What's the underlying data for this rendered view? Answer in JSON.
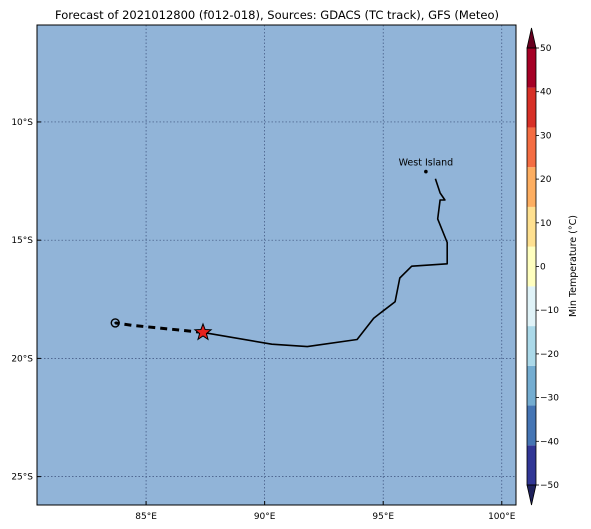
{
  "title": "Forecast of 2021012800 (f012-018), Sources: GDACS (TC track), GFS (Meteo)",
  "map": {
    "background_color": "#91b4d8",
    "grid": true,
    "lon_range": [
      80.4,
      100.6
    ],
    "lat_range": [
      -26.2,
      -5.9
    ],
    "lon_ticks": [
      {
        "value": 85,
        "label": "85°E"
      },
      {
        "value": 90,
        "label": "90°E"
      },
      {
        "value": 95,
        "label": "95°E"
      },
      {
        "value": 100,
        "label": "100°E"
      }
    ],
    "lat_ticks": [
      {
        "value": -10,
        "label": "10°S"
      },
      {
        "value": -15,
        "label": "15°S"
      },
      {
        "value": -20,
        "label": "20°S"
      },
      {
        "value": -25,
        "label": "25°S"
      }
    ],
    "places": [
      {
        "name": "West Island",
        "lon": 96.8,
        "lat": -12.1
      }
    ],
    "track_past": [
      [
        97.2,
        -12.4
      ],
      [
        97.4,
        -13.0
      ],
      [
        97.6,
        -13.3
      ],
      [
        97.4,
        -13.3
      ],
      [
        97.3,
        -14.1
      ],
      [
        97.7,
        -15.1
      ],
      [
        97.7,
        -16.0
      ],
      [
        96.2,
        -16.1
      ],
      [
        95.7,
        -16.6
      ],
      [
        95.5,
        -17.6
      ],
      [
        94.6,
        -18.3
      ],
      [
        93.9,
        -19.2
      ],
      [
        91.8,
        -19.5
      ],
      [
        90.3,
        -19.4
      ],
      [
        87.4,
        -18.9
      ]
    ],
    "track_forecast": [
      [
        87.4,
        -18.9
      ],
      [
        84.4,
        -18.6
      ],
      [
        83.7,
        -18.5
      ]
    ],
    "current_position": {
      "lon": 87.4,
      "lat": -18.9,
      "color": "#e8221d"
    },
    "forecast_end": {
      "lon": 83.7,
      "lat": -18.5
    }
  },
  "colorbar": {
    "label": "Min Temperature (°C)",
    "ticks": [
      50,
      40,
      30,
      20,
      10,
      0,
      -10,
      -20,
      -30,
      -40,
      -50
    ],
    "range": [
      -50,
      50
    ],
    "extend": "both",
    "colors": [
      "#1e215c",
      "#313695",
      "#4575b4",
      "#74add1",
      "#abd9e9",
      "#e0f3f8",
      "#ffffbf",
      "#fee090",
      "#fdae61",
      "#f46d43",
      "#d73027",
      "#a50026",
      "#67001f"
    ]
  }
}
